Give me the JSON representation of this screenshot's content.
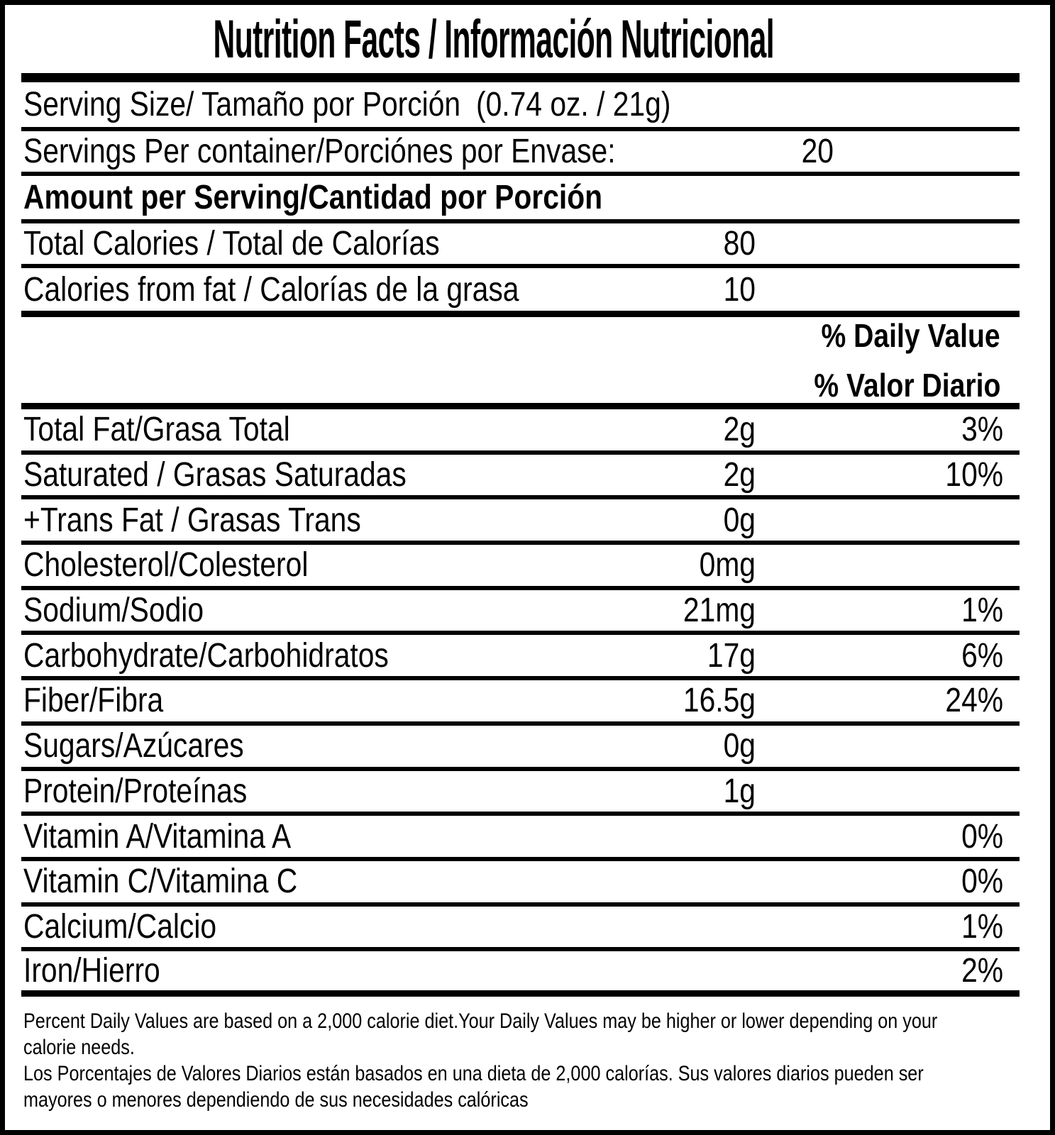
{
  "colors": {
    "ink": "#000000",
    "paper": "#ffffff"
  },
  "title": "Nutrition Facts / Información Nutricional",
  "serving": {
    "label": "Serving Size/ Tamaño por Porción",
    "value": "(0.74 oz. / 21g)"
  },
  "servings": {
    "label": "Servings Per container/Porciónes por Envase:",
    "value": "20"
  },
  "amount_heading": "Amount per Serving/Cantidad por Porción",
  "calories": [
    {
      "label": "Total Calories / Total de Calorías",
      "value": "80"
    },
    {
      "label": "Calories from fat / Calorías de la grasa",
      "value": "10"
    }
  ],
  "dv_header": [
    "% Daily Value",
    "% Valor Diario"
  ],
  "nutrients": [
    {
      "label": "Total Fat/Grasa Total",
      "amount": "2g",
      "dv": "3%"
    },
    {
      "label": "Saturated / Grasas Saturadas",
      "amount": "2g",
      "dv": "10%"
    },
    {
      "label": "+Trans Fat / Grasas Trans",
      "amount": "0g",
      "dv": ""
    },
    {
      "label": "Cholesterol/Colesterol",
      "amount": "0mg",
      "dv": ""
    },
    {
      "label": "Sodium/Sodio",
      "amount": "21mg",
      "dv": "1%"
    },
    {
      "label": "Carbohydrate/Carbohidratos",
      "amount": "17g",
      "dv": "6%"
    },
    {
      "label": "Fiber/Fibra",
      "amount": "16.5g",
      "dv": "24%"
    },
    {
      "label": "Sugars/Azúcares",
      "amount": "0g",
      "dv": ""
    },
    {
      "label": "Protein/Proteínas",
      "amount": "1g",
      "dv": ""
    },
    {
      "label": "Vitamin A/Vitamina A",
      "amount": "",
      "dv": "0%"
    },
    {
      "label": "Vitamin C/Vitamina C",
      "amount": "",
      "dv": "0%"
    },
    {
      "label": "Calcium/Calcio",
      "amount": "",
      "dv": "1%"
    },
    {
      "label": "Iron/Hierro",
      "amount": "",
      "dv": "2%"
    }
  ],
  "footnote": [
    "Percent Daily Values are based on a 2,000 calorie diet.Your Daily Values may be higher or lower depending on your",
    "calorie needs.",
    "Los Porcentajes de Valores Diarios están basados en una dieta de 2,000 calorías. Sus valores diarios pueden ser",
    "mayores o menores dependiendo de sus necesidades calóricas"
  ]
}
